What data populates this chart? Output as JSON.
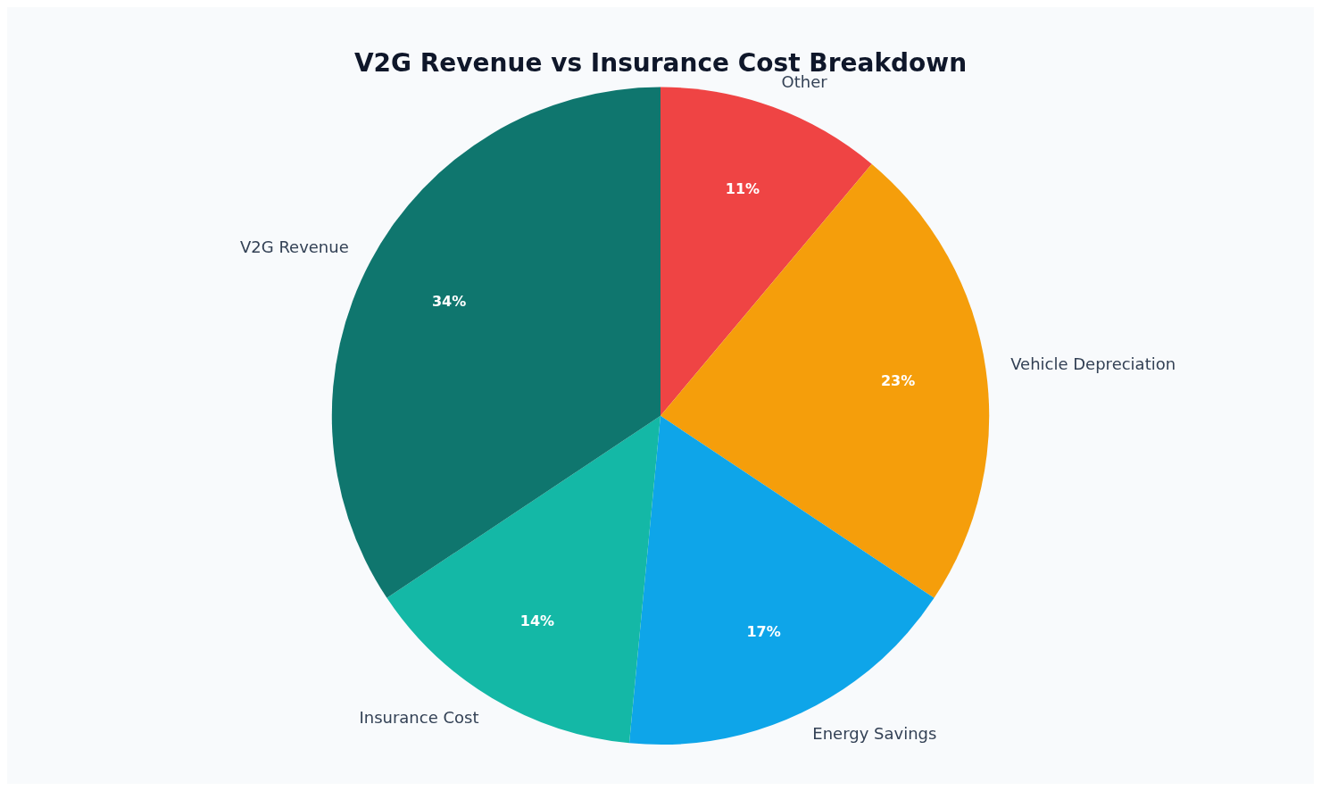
{
  "chart_data": {
    "type": "pie",
    "title": "V2G Revenue vs Insurance Cost Breakdown",
    "categories": [
      "Other",
      "Vehicle Depreciation",
      "Energy Savings",
      "Insurance Cost",
      "V2G Revenue"
    ],
    "values": [
      11,
      23,
      17,
      14,
      34
    ],
    "value_labels": [
      "11%",
      "23%",
      "17%",
      "14%",
      "34%"
    ],
    "colors": [
      "#ef4444",
      "#f59e0b",
      "#0ea5e9",
      "#14b8a6",
      "#0f766e"
    ],
    "legend": false
  }
}
